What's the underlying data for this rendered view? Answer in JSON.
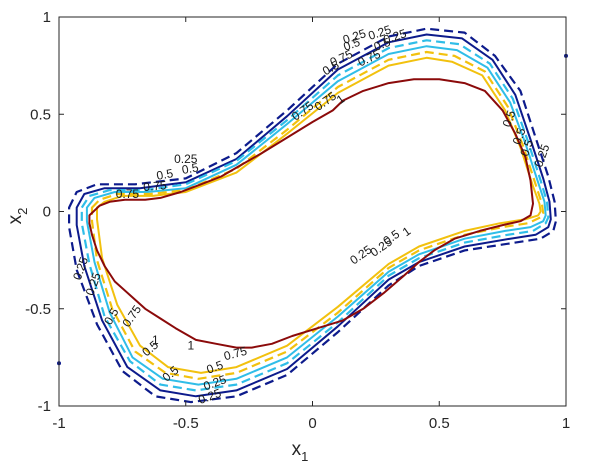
{
  "chart_data": {
    "type": "line",
    "title": "",
    "xlabel": {
      "main": "x",
      "sub": "1"
    },
    "ylabel": {
      "main": "x",
      "sub": "2"
    },
    "xlim": [
      -1,
      1
    ],
    "ylim": [
      -1,
      1
    ],
    "xticks": [
      -1,
      -0.5,
      0,
      0.5,
      1
    ],
    "yticks": [
      -1,
      -0.5,
      0,
      0.5,
      1
    ],
    "xtick_labels": [
      "-1",
      "-0.5",
      "0",
      "0.5",
      "1"
    ],
    "ytick_labels": [
      "-1",
      "-0.5",
      "0",
      "0.5",
      "1"
    ],
    "grid": false,
    "legend": "none",
    "series": [
      {
        "level": "0.25",
        "style": "dashed",
        "color": "#0d1b8c",
        "x": [
          -0.96,
          -0.93,
          -0.85,
          -0.7,
          -0.5,
          -0.3,
          -0.1,
          0.1,
          0.3,
          0.45,
          0.6,
          0.72,
          0.82,
          0.88,
          0.93,
          0.955,
          0.96,
          0.95,
          0.9,
          0.8,
          0.6,
          0.42,
          0.3,
          0.1,
          -0.1,
          -0.3,
          -0.48,
          -0.62,
          -0.75,
          -0.85,
          -0.93,
          -0.96
        ],
        "y": [
          0.02,
          0.1,
          0.14,
          0.14,
          0.17,
          0.3,
          0.52,
          0.76,
          0.9,
          0.94,
          0.92,
          0.8,
          0.62,
          0.38,
          0.18,
          0.05,
          -0.05,
          -0.1,
          -0.14,
          -0.16,
          -0.2,
          -0.28,
          -0.38,
          -0.62,
          -0.84,
          -0.95,
          -0.98,
          -0.95,
          -0.82,
          -0.58,
          -0.3,
          -0.08
        ]
      },
      {
        "level": "0.25",
        "style": "solid",
        "color": "#0d1b8c",
        "x": [
          -0.93,
          -0.9,
          -0.82,
          -0.68,
          -0.5,
          -0.3,
          -0.1,
          0.1,
          0.3,
          0.45,
          0.59,
          0.71,
          0.8,
          0.86,
          0.91,
          0.935,
          0.94,
          0.93,
          0.88,
          0.78,
          0.6,
          0.42,
          0.3,
          0.1,
          -0.1,
          -0.3,
          -0.46,
          -0.6,
          -0.73,
          -0.83,
          -0.9,
          -0.93
        ],
        "y": [
          0.02,
          0.09,
          0.12,
          0.12,
          0.15,
          0.27,
          0.49,
          0.73,
          0.87,
          0.91,
          0.89,
          0.78,
          0.6,
          0.37,
          0.17,
          0.05,
          -0.04,
          -0.08,
          -0.12,
          -0.14,
          -0.18,
          -0.26,
          -0.35,
          -0.59,
          -0.81,
          -0.92,
          -0.95,
          -0.92,
          -0.8,
          -0.56,
          -0.28,
          -0.07
        ]
      },
      {
        "level": "0.5",
        "style": "dashed",
        "color": "#2fbde8",
        "x": [
          -0.91,
          -0.88,
          -0.8,
          -0.66,
          -0.5,
          -0.3,
          -0.1,
          0.1,
          0.3,
          0.45,
          0.58,
          0.7,
          0.79,
          0.85,
          0.9,
          0.925,
          0.93,
          0.92,
          0.87,
          0.77,
          0.6,
          0.42,
          0.3,
          0.1,
          -0.1,
          -0.3,
          -0.46,
          -0.6,
          -0.72,
          -0.82,
          -0.88,
          -0.91
        ],
        "y": [
          0.02,
          0.08,
          0.11,
          0.11,
          0.14,
          0.26,
          0.47,
          0.7,
          0.84,
          0.88,
          0.86,
          0.76,
          0.58,
          0.36,
          0.16,
          0.05,
          -0.03,
          -0.06,
          -0.1,
          -0.12,
          -0.16,
          -0.24,
          -0.33,
          -0.57,
          -0.78,
          -0.89,
          -0.92,
          -0.89,
          -0.77,
          -0.54,
          -0.27,
          -0.06
        ]
      },
      {
        "level": "0.5",
        "style": "solid",
        "color": "#2fbde8",
        "x": [
          -0.89,
          -0.86,
          -0.78,
          -0.65,
          -0.5,
          -0.3,
          -0.1,
          0.1,
          0.3,
          0.45,
          0.57,
          0.69,
          0.78,
          0.84,
          0.89,
          0.915,
          0.92,
          0.91,
          0.86,
          0.76,
          0.6,
          0.42,
          0.3,
          0.1,
          -0.1,
          -0.3,
          -0.45,
          -0.59,
          -0.71,
          -0.8,
          -0.86,
          -0.89
        ],
        "y": [
          0.02,
          0.07,
          0.1,
          0.1,
          0.12,
          0.24,
          0.45,
          0.67,
          0.81,
          0.85,
          0.83,
          0.74,
          0.56,
          0.35,
          0.15,
          0.05,
          -0.02,
          -0.05,
          -0.08,
          -0.1,
          -0.14,
          -0.22,
          -0.31,
          -0.54,
          -0.75,
          -0.86,
          -0.89,
          -0.86,
          -0.75,
          -0.52,
          -0.26,
          -0.05
        ]
      },
      {
        "level": "0.75",
        "style": "dashed",
        "color": "#f2c10e",
        "x": [
          -0.87,
          -0.84,
          -0.77,
          -0.64,
          -0.5,
          -0.3,
          -0.1,
          0.1,
          0.3,
          0.45,
          0.56,
          0.68,
          0.77,
          0.83,
          0.88,
          0.905,
          0.91,
          0.9,
          0.85,
          0.75,
          0.6,
          0.42,
          0.3,
          0.1,
          -0.1,
          -0.3,
          -0.45,
          -0.58,
          -0.7,
          -0.79,
          -0.85,
          -0.87
        ],
        "y": [
          0.02,
          0.06,
          0.09,
          0.09,
          0.11,
          0.22,
          0.42,
          0.64,
          0.78,
          0.82,
          0.8,
          0.72,
          0.54,
          0.34,
          0.14,
          0.04,
          -0.01,
          -0.03,
          -0.06,
          -0.08,
          -0.12,
          -0.2,
          -0.29,
          -0.52,
          -0.72,
          -0.83,
          -0.86,
          -0.83,
          -0.72,
          -0.5,
          -0.25,
          -0.05
        ]
      },
      {
        "level": "0.75",
        "style": "solid",
        "color": "#f2c10e",
        "x": [
          -0.85,
          -0.82,
          -0.75,
          -0.63,
          -0.5,
          -0.3,
          -0.1,
          0.1,
          0.3,
          0.45,
          0.55,
          0.67,
          0.76,
          0.82,
          0.87,
          0.895,
          0.9,
          0.89,
          0.84,
          0.74,
          0.6,
          0.42,
          0.3,
          0.1,
          -0.1,
          -0.3,
          -0.44,
          -0.57,
          -0.68,
          -0.77,
          -0.83,
          -0.85
        ],
        "y": [
          0.02,
          0.05,
          0.08,
          0.08,
          0.1,
          0.2,
          0.4,
          0.61,
          0.75,
          0.79,
          0.77,
          0.7,
          0.52,
          0.33,
          0.13,
          0.04,
          0.0,
          -0.02,
          -0.04,
          -0.06,
          -0.1,
          -0.18,
          -0.27,
          -0.49,
          -0.69,
          -0.8,
          -0.83,
          -0.8,
          -0.69,
          -0.48,
          -0.24,
          -0.04
        ]
      },
      {
        "level": "1",
        "style": "solid",
        "color": "#8b0a0a",
        "x": [
          -0.88,
          -0.84,
          -0.8,
          -0.74,
          -0.66,
          -0.6,
          -0.52,
          -0.44,
          -0.36,
          -0.28,
          -0.2,
          -0.1,
          0.0,
          0.08,
          0.12,
          0.2,
          0.3,
          0.4,
          0.5,
          0.6,
          0.68,
          0.75,
          0.8,
          0.84,
          0.86,
          0.87,
          0.86,
          0.82,
          0.75,
          0.66,
          0.56,
          0.48,
          0.42,
          0.36,
          0.28,
          0.2,
          0.12,
          0.02,
          -0.08,
          -0.16,
          -0.24,
          -0.3,
          -0.38,
          -0.46,
          -0.54,
          -0.6,
          -0.66,
          -0.72,
          -0.78,
          -0.82,
          -0.85,
          -0.87,
          -0.88
        ],
        "y": [
          -0.02,
          0.03,
          0.05,
          0.06,
          0.06,
          0.07,
          0.1,
          0.14,
          0.18,
          0.24,
          0.3,
          0.38,
          0.46,
          0.52,
          0.57,
          0.62,
          0.66,
          0.68,
          0.68,
          0.66,
          0.62,
          0.52,
          0.4,
          0.28,
          0.16,
          0.04,
          -0.02,
          -0.05,
          -0.07,
          -0.1,
          -0.14,
          -0.2,
          -0.26,
          -0.33,
          -0.42,
          -0.5,
          -0.56,
          -0.6,
          -0.64,
          -0.68,
          -0.7,
          -0.7,
          -0.68,
          -0.66,
          -0.6,
          -0.55,
          -0.5,
          -0.43,
          -0.36,
          -0.28,
          -0.2,
          -0.12,
          -0.06
        ]
      }
    ],
    "contour_labels": [
      {
        "text": "0.25",
        "x": 0.17,
        "y": 0.88,
        "rotate": -18
      },
      {
        "text": "0.25",
        "x": 0.27,
        "y": 0.9,
        "rotate": -18
      },
      {
        "text": "0.25",
        "x": 0.33,
        "y": 0.88,
        "rotate": -18
      },
      {
        "text": "0.5",
        "x": 0.16,
        "y": 0.84,
        "rotate": -20
      },
      {
        "text": "0.5",
        "x": 0.28,
        "y": 0.84,
        "rotate": -20
      },
      {
        "text": "0.75",
        "x": 0.12,
        "y": 0.77,
        "rotate": -25
      },
      {
        "text": "0.75",
        "x": 0.23,
        "y": 0.77,
        "rotate": -25
      },
      {
        "text": "0.5",
        "x": 0.08,
        "y": 0.72,
        "rotate": -30
      },
      {
        "text": "0.75",
        "x": -0.03,
        "y": 0.5,
        "rotate": -35
      },
      {
        "text": "0.75",
        "x": 0.06,
        "y": 0.55,
        "rotate": -35
      },
      {
        "text": "1",
        "x": 0.12,
        "y": 0.56,
        "rotate": -35
      },
      {
        "text": "0.5",
        "x": 0.79,
        "y": 0.47,
        "rotate": -70
      },
      {
        "text": "0.5",
        "x": 0.83,
        "y": 0.38,
        "rotate": -70
      },
      {
        "text": "0.5",
        "x": 0.86,
        "y": 0.32,
        "rotate": -70
      },
      {
        "text": "0.25",
        "x": 0.92,
        "y": 0.28,
        "rotate": -70
      },
      {
        "text": "0.25",
        "x": -0.5,
        "y": 0.25,
        "rotate": 0
      },
      {
        "text": "0.5",
        "x": -0.48,
        "y": 0.2,
        "rotate": -10
      },
      {
        "text": "0.5",
        "x": -0.58,
        "y": 0.17,
        "rotate": -10
      },
      {
        "text": "0.75",
        "x": -0.62,
        "y": 0.11,
        "rotate": -5
      },
      {
        "text": "0.75",
        "x": -0.73,
        "y": 0.07,
        "rotate": 0
      },
      {
        "text": "0.25",
        "x": 0.2,
        "y": -0.24,
        "rotate": -35
      },
      {
        "text": "0.25",
        "x": 0.28,
        "y": -0.2,
        "rotate": -35
      },
      {
        "text": "0.5",
        "x": 0.32,
        "y": -0.15,
        "rotate": -35
      },
      {
        "text": "1",
        "x": 0.38,
        "y": -0.12,
        "rotate": -35
      },
      {
        "text": "0.25",
        "x": -0.9,
        "y": -0.3,
        "rotate": -70
      },
      {
        "text": "0.25",
        "x": -0.85,
        "y": -0.38,
        "rotate": -70
      },
      {
        "text": "0.5",
        "x": -0.78,
        "y": -0.55,
        "rotate": -60
      },
      {
        "text": "0.75",
        "x": -0.7,
        "y": -0.55,
        "rotate": -55
      },
      {
        "text": "0.5",
        "x": -0.63,
        "y": -0.72,
        "rotate": -40
      },
      {
        "text": "0.5",
        "x": -0.55,
        "y": -0.85,
        "rotate": -40
      },
      {
        "text": "0.25",
        "x": -0.38,
        "y": -0.9,
        "rotate": -20
      },
      {
        "text": "0.25",
        "x": -0.4,
        "y": -0.97,
        "rotate": -20
      },
      {
        "text": "0.5",
        "x": -0.38,
        "y": -0.82,
        "rotate": -20
      },
      {
        "text": "0.75",
        "x": -0.3,
        "y": -0.75,
        "rotate": -15
      },
      {
        "text": "1",
        "x": -0.62,
        "y": -0.68,
        "rotate": 0
      },
      {
        "text": "1",
        "x": -0.48,
        "y": -0.71,
        "rotate": 0
      }
    ],
    "markers": [
      {
        "x": -1.0,
        "y": -0.78
      },
      {
        "x": 1.0,
        "y": 0.8
      }
    ]
  }
}
